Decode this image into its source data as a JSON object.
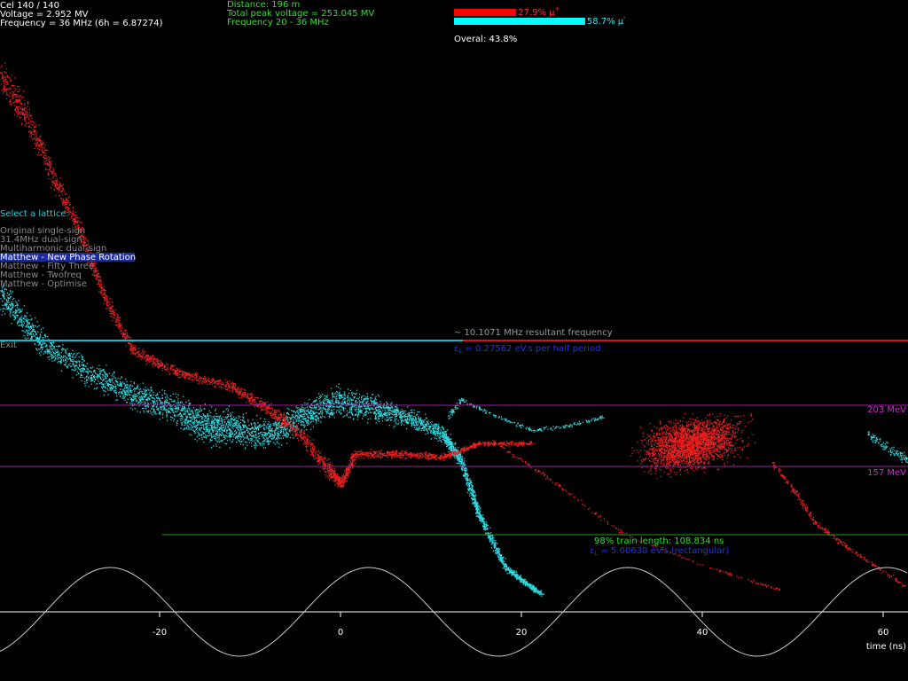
{
  "status": {
    "cell": "Cel 140 / 140",
    "voltage": "Voltage = 2.952 MV",
    "frequency": "Frequency = 36 MHz  (6h = 6.87274)"
  },
  "summary": {
    "distance": "Distance: 196 m",
    "total_voltage": "Total peak voltage = 253.045 MV",
    "frequency_range": "Frequency 20 - 36 MHz"
  },
  "transmission": {
    "bars": [
      {
        "value": 27.9,
        "label": "27.9%",
        "particle": "μ",
        "charge": "+",
        "color": "#ff0000"
      },
      {
        "value": 58.7,
        "label": "58.7%",
        "particle": "μ",
        "charge": "-",
        "color": "#00ffff"
      }
    ],
    "overall": "Overal: 43.8%"
  },
  "lattice_menu": {
    "title": "Select a lattice:",
    "options": [
      "Original single-sign",
      "31.4MHz dual-sign",
      "Multiharmonic dual-sign",
      "Matthew - New Phase Rotation",
      "Matthew - Fifty Three",
      "Matthew - Twofreq",
      "Matthew - Optimise"
    ],
    "selected": 3,
    "exit": "Exit"
  },
  "annotations": {
    "resultant_frequency": "~ 10.1071 MHz resultant frequency",
    "emittance_half": {
      "symbol": "ε",
      "subscript": "L",
      "text": " = 0.27562 eV.s per half period"
    },
    "train_length": "98% train length: 108.834 ns",
    "emittance_rect": {
      "symbol": "ε",
      "subscript": "L",
      "text": " = 5.00630 eV.s (rectangular)"
    }
  },
  "energy_lines": [
    {
      "label": "203 MeV"
    },
    {
      "label": "157 MeV"
    }
  ],
  "time_axis": {
    "ticks": [
      -20,
      0,
      20,
      40,
      60
    ],
    "label": "time (ns)"
  }
}
